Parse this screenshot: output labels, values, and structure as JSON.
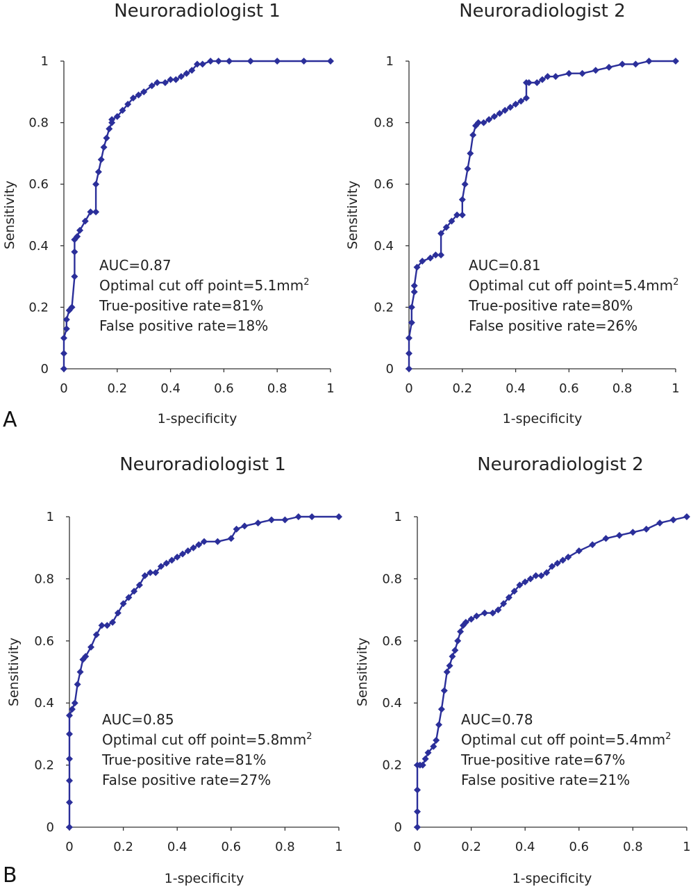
{
  "panel_labels": [
    "A",
    "B"
  ],
  "chart_data": [
    {
      "type": "line",
      "panel": "A",
      "title": "Neuroradiologist 1",
      "xlabel": "1-specificity",
      "ylabel": "Sensitivity",
      "xlim": [
        0,
        1
      ],
      "ylim": [
        0,
        1
      ],
      "xticks": [
        "0",
        "0.2",
        "0.4",
        "0.6",
        "0.8",
        "1"
      ],
      "yticks": [
        "0",
        "0.2",
        "0.4",
        "0.6",
        "0.8",
        "1"
      ],
      "series_color": "#2b2f9a",
      "annotation": {
        "auc": "AUC=0.87",
        "cutoff": "Optimal cut off point=5.1mm",
        "cutoff_unit_sup": "2",
        "tpr": "True-positive rate=81%",
        "fpr": "False positive rate=18%"
      },
      "x": [
        0,
        0,
        0,
        0.01,
        0.01,
        0.02,
        0.03,
        0.04,
        0.04,
        0.04,
        0.05,
        0.06,
        0.08,
        0.1,
        0.12,
        0.12,
        0.13,
        0.14,
        0.15,
        0.16,
        0.17,
        0.18,
        0.18,
        0.2,
        0.22,
        0.24,
        0.26,
        0.28,
        0.3,
        0.33,
        0.35,
        0.38,
        0.4,
        0.42,
        0.44,
        0.46,
        0.48,
        0.5,
        0.52,
        0.55,
        0.58,
        0.62,
        0.7,
        0.8,
        0.9,
        1.0
      ],
      "y": [
        0,
        0.05,
        0.1,
        0.13,
        0.16,
        0.19,
        0.2,
        0.3,
        0.38,
        0.42,
        0.43,
        0.45,
        0.48,
        0.51,
        0.51,
        0.6,
        0.64,
        0.68,
        0.72,
        0.75,
        0.78,
        0.8,
        0.81,
        0.82,
        0.84,
        0.86,
        0.88,
        0.89,
        0.9,
        0.92,
        0.93,
        0.93,
        0.94,
        0.94,
        0.95,
        0.96,
        0.97,
        0.99,
        0.99,
        1.0,
        1.0,
        1.0,
        1.0,
        1.0,
        1.0,
        1.0
      ]
    },
    {
      "type": "line",
      "panel": "A",
      "title": "Neuroradiologist 2",
      "xlabel": "1-specificity",
      "ylabel": "Sensitivity",
      "xlim": [
        0,
        1
      ],
      "ylim": [
        0,
        1
      ],
      "xticks": [
        "0",
        "0.2",
        "0.4",
        "0.6",
        "0.8",
        "1"
      ],
      "yticks": [
        "0",
        "0.2",
        "0.4",
        "0.6",
        "0.8",
        "1"
      ],
      "series_color": "#2b2f9a",
      "annotation": {
        "auc": "AUC=0.81",
        "cutoff": "Optimal cut off point=5.4mm",
        "cutoff_unit_sup": "2",
        "tpr": "True-positive rate=80%",
        "fpr": "False positive rate=26%"
      },
      "x": [
        0,
        0,
        0,
        0.01,
        0.01,
        0.02,
        0.02,
        0.03,
        0.05,
        0.08,
        0.1,
        0.12,
        0.12,
        0.14,
        0.16,
        0.18,
        0.2,
        0.2,
        0.21,
        0.22,
        0.23,
        0.24,
        0.25,
        0.26,
        0.28,
        0.3,
        0.32,
        0.34,
        0.36,
        0.38,
        0.4,
        0.42,
        0.44,
        0.44,
        0.45,
        0.48,
        0.5,
        0.52,
        0.55,
        0.6,
        0.65,
        0.7,
        0.75,
        0.8,
        0.85,
        0.9,
        1.0
      ],
      "y": [
        0,
        0.05,
        0.1,
        0.15,
        0.2,
        0.25,
        0.27,
        0.33,
        0.35,
        0.36,
        0.37,
        0.37,
        0.44,
        0.46,
        0.48,
        0.5,
        0.5,
        0.55,
        0.6,
        0.65,
        0.7,
        0.76,
        0.79,
        0.8,
        0.8,
        0.81,
        0.82,
        0.83,
        0.84,
        0.85,
        0.86,
        0.87,
        0.88,
        0.93,
        0.93,
        0.93,
        0.94,
        0.95,
        0.95,
        0.96,
        0.96,
        0.97,
        0.98,
        0.99,
        0.99,
        1.0,
        1.0
      ]
    },
    {
      "type": "line",
      "panel": "B",
      "title": "Neuroradiologist 1",
      "xlabel": "1-specificity",
      "ylabel": "Sensitivity",
      "xlim": [
        0,
        1
      ],
      "ylim": [
        0,
        1
      ],
      "xticks": [
        "0",
        "0.2",
        "0.4",
        "0.6",
        "0.8",
        "1"
      ],
      "yticks": [
        "0",
        "0.2",
        "0.4",
        "0.6",
        "0.8",
        "1"
      ],
      "series_color": "#2b2f9a",
      "annotation": {
        "auc": "AUC=0.85",
        "cutoff": "Optimal cut off point=5.8mm",
        "cutoff_unit_sup": "2",
        "tpr": "True-positive rate=81%",
        "fpr": "False positive rate=27%"
      },
      "x": [
        0,
        0,
        0,
        0,
        0,
        0,
        0.01,
        0.02,
        0.03,
        0.04,
        0.05,
        0.06,
        0.08,
        0.1,
        0.12,
        0.14,
        0.16,
        0.18,
        0.2,
        0.22,
        0.24,
        0.26,
        0.28,
        0.3,
        0.32,
        0.34,
        0.36,
        0.38,
        0.4,
        0.42,
        0.44,
        0.46,
        0.48,
        0.5,
        0.55,
        0.6,
        0.62,
        0.65,
        0.7,
        0.75,
        0.8,
        0.85,
        0.9,
        1.0
      ],
      "y": [
        0,
        0.08,
        0.15,
        0.22,
        0.3,
        0.36,
        0.38,
        0.4,
        0.46,
        0.5,
        0.54,
        0.55,
        0.58,
        0.62,
        0.65,
        0.65,
        0.66,
        0.69,
        0.72,
        0.74,
        0.76,
        0.78,
        0.81,
        0.82,
        0.82,
        0.84,
        0.85,
        0.86,
        0.87,
        0.88,
        0.89,
        0.9,
        0.91,
        0.92,
        0.92,
        0.93,
        0.96,
        0.97,
        0.98,
        0.99,
        0.99,
        1.0,
        1.0,
        1.0
      ]
    },
    {
      "type": "line",
      "panel": "B",
      "title": "Neuroradiologist 2",
      "xlabel": "1-specificity",
      "ylabel": "Sensitivity",
      "xlim": [
        0,
        1
      ],
      "ylim": [
        0,
        1
      ],
      "xticks": [
        "0",
        "0.2",
        "0.4",
        "0.6",
        "0.8",
        "1"
      ],
      "yticks": [
        "0",
        "0.2",
        "0.4",
        "0.6",
        "0.8",
        "1"
      ],
      "series_color": "#2b2f9a",
      "annotation": {
        "auc": "AUC=0.78",
        "cutoff": "Optimal cut off point=5.4mm",
        "cutoff_unit_sup": "2",
        "tpr": "True-positive rate=67%",
        "fpr": "False positive rate=21%"
      },
      "x": [
        0,
        0,
        0,
        0,
        0.01,
        0.02,
        0.03,
        0.04,
        0.06,
        0.07,
        0.08,
        0.09,
        0.1,
        0.11,
        0.12,
        0.13,
        0.14,
        0.15,
        0.16,
        0.17,
        0.18,
        0.2,
        0.22,
        0.25,
        0.28,
        0.3,
        0.32,
        0.34,
        0.36,
        0.38,
        0.4,
        0.42,
        0.44,
        0.46,
        0.48,
        0.5,
        0.52,
        0.54,
        0.56,
        0.6,
        0.65,
        0.7,
        0.75,
        0.8,
        0.85,
        0.9,
        0.95,
        1.0
      ],
      "y": [
        0,
        0.05,
        0.12,
        0.2,
        0.2,
        0.2,
        0.22,
        0.24,
        0.26,
        0.28,
        0.33,
        0.38,
        0.44,
        0.5,
        0.52,
        0.55,
        0.57,
        0.6,
        0.63,
        0.65,
        0.66,
        0.67,
        0.68,
        0.69,
        0.69,
        0.7,
        0.72,
        0.74,
        0.76,
        0.78,
        0.79,
        0.8,
        0.81,
        0.81,
        0.82,
        0.84,
        0.85,
        0.86,
        0.87,
        0.89,
        0.91,
        0.93,
        0.94,
        0.95,
        0.96,
        0.98,
        0.99,
        1.0
      ]
    }
  ]
}
